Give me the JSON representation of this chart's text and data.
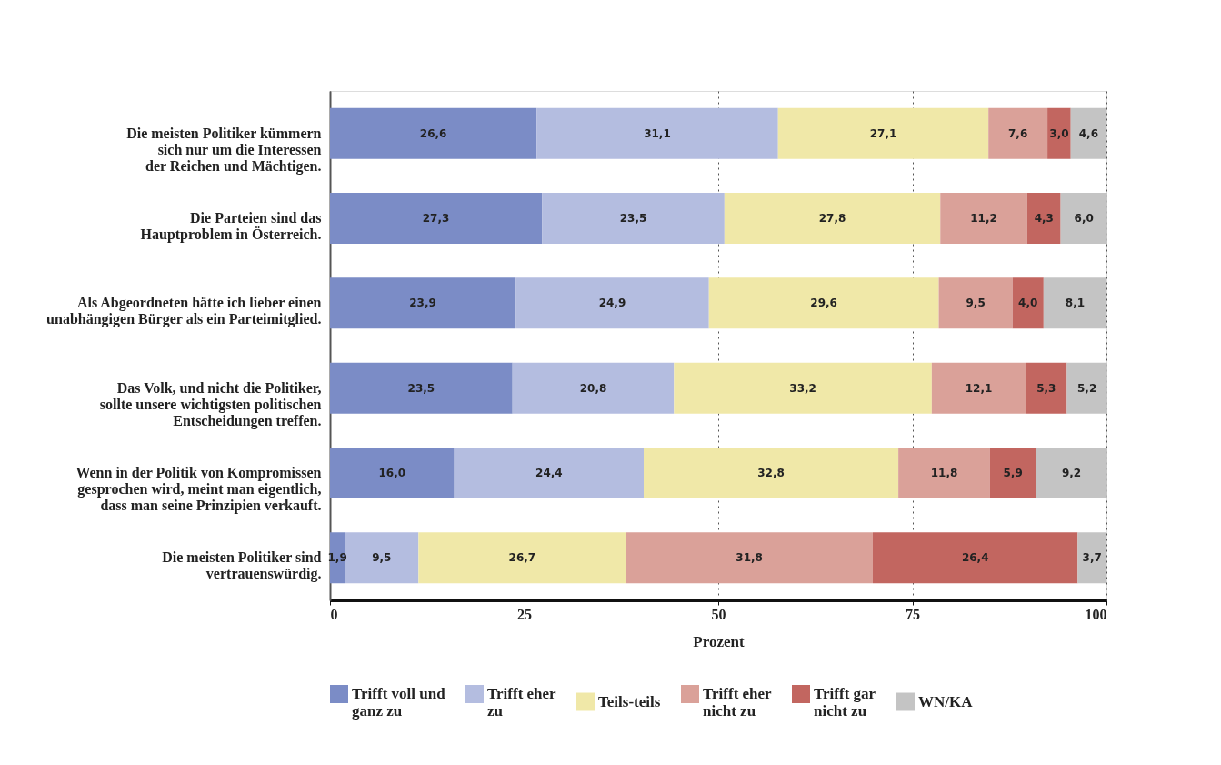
{
  "chart_data": {
    "type": "bar",
    "orientation": "horizontal",
    "stacked": true,
    "xlabel": "Prozent",
    "categories": [
      "Die meisten Politiker kümmern\nsich nur um die Interessen\nder Reichen und Mächtigen.",
      "Die Parteien sind das\nHauptproblem in Österreich.",
      "Als Abgeordneten hätte ich lieber einen\nunabhängigen Bürger als ein Parteimitglied.",
      "Das Volk, und nicht die Politiker,\nsollte unsere wichtigsten politischen\nEntscheidungen treffen.",
      "Wenn in der Politik von Kompromissen\ngesprochen wird, meint man eigentlich,\ndass man seine Prinzipien verkauft.",
      "Die meisten Politiker sind\nvertrauenswürdig."
    ],
    "series": [
      {
        "name": "Trifft voll und\nganz zu",
        "color": "#7b8cc6",
        "values": [
          26.6,
          27.3,
          23.9,
          23.5,
          16.0,
          1.9
        ],
        "value_labels": [
          "26,6",
          "27,3",
          "23,9",
          "23,5",
          "16,0",
          "1,9"
        ]
      },
      {
        "name": "Trifft eher\nzu",
        "color": "#b4bde0",
        "values": [
          31.1,
          23.5,
          24.9,
          20.8,
          24.4,
          9.5
        ],
        "value_labels": [
          "31,1",
          "23,5",
          "24,9",
          "20,8",
          "24,4",
          "9,5"
        ]
      },
      {
        "name": "Teils-teils",
        "color": "#f0e8a8",
        "values": [
          27.1,
          27.8,
          29.6,
          33.2,
          32.8,
          26.7
        ],
        "value_labels": [
          "27,1",
          "27,8",
          "29,6",
          "33,2",
          "32,8",
          "26,7"
        ]
      },
      {
        "name": "Trifft eher\nnicht zu",
        "color": "#daa199",
        "values": [
          7.6,
          11.2,
          9.5,
          12.1,
          11.8,
          31.8
        ],
        "value_labels": [
          "7,6",
          "11,2",
          "9,5",
          "12,1",
          "11,8",
          "31,8"
        ]
      },
      {
        "name": "Trifft gar\nnicht zu",
        "color": "#c26660",
        "values": [
          3.0,
          4.3,
          4.0,
          5.3,
          5.9,
          26.4
        ],
        "value_labels": [
          "3,0",
          "4,3",
          "4,0",
          "5,3",
          "5,9",
          "26,4"
        ]
      },
      {
        "name": "WN/KA",
        "color": "#c4c4c4",
        "values": [
          4.6,
          6.0,
          8.1,
          5.2,
          9.2,
          3.7
        ],
        "value_labels": [
          "4,6",
          "6,0",
          "8,1",
          "5,2",
          "9,2",
          "3,7"
        ]
      }
    ],
    "xlim": [
      0,
      100
    ],
    "xticks": [
      0,
      25,
      50,
      75,
      100
    ],
    "grid": "x",
    "legend": "bottom"
  }
}
